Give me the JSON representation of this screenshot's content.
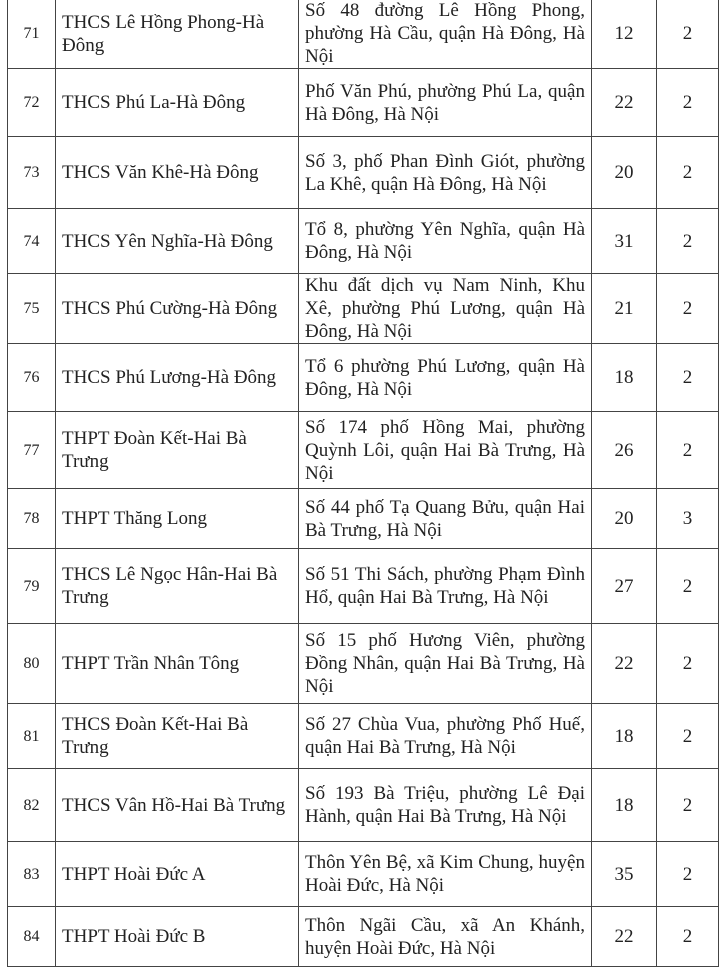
{
  "rows": [
    {
      "no": "71",
      "name": "THCS Lê Hồng Phong-Hà Đông",
      "address": "Số 48 đường Lê Hồng Phong, phường Hà Cầu, quận Hà Đông, Hà Nội",
      "a": "12",
      "b": "2"
    },
    {
      "no": "72",
      "name": "THCS Phú La-Hà Đông",
      "address": "Phố Văn Phú, phường Phú La, quận Hà Đông, Hà Nội",
      "a": "22",
      "b": "2"
    },
    {
      "no": "73",
      "name": "THCS Văn Khê-Hà Đông",
      "address": "Số 3, phố Phan Đình Giót, phường La Khê, quận Hà Đông, Hà Nội",
      "a": "20",
      "b": "2"
    },
    {
      "no": "74",
      "name": "THCS Yên Nghĩa-Hà Đông",
      "address": "Tổ 8, phường Yên Nghĩa, quận Hà Đông, Hà Nội",
      "a": "31",
      "b": "2"
    },
    {
      "no": "75",
      "name": "THCS Phú Cường-Hà Đông",
      "address": "Khu đất dịch vụ Nam Ninh, Khu Xê, phường Phú Lương, quận Hà Đông, Hà Nội",
      "a": "21",
      "b": "2"
    },
    {
      "no": "76",
      "name": "THCS Phú Lương-Hà Đông",
      "address": "Tổ 6 phường Phú Lương, quận Hà Đông, Hà Nội",
      "a": "18",
      "b": "2"
    },
    {
      "no": "77",
      "name": "THPT Đoàn Kết-Hai Bà Trưng",
      "address": "Số 174 phố Hồng Mai, phường Quỳnh Lôi, quận Hai Bà Trưng, Hà Nội",
      "a": "26",
      "b": "2"
    },
    {
      "no": "78",
      "name": "THPT Thăng Long",
      "address": "Số 44 phố Tạ Quang Bửu, quận Hai Bà Trưng, Hà Nội",
      "a": "20",
      "b": "3"
    },
    {
      "no": "79",
      "name": "THCS Lê Ngọc Hân-Hai Bà Trưng",
      "address": "Số 51 Thi Sách, phường Phạm Đình Hổ, quận Hai Bà Trưng, Hà Nội",
      "a": "27",
      "b": "2"
    },
    {
      "no": "80",
      "name": "THPT Trần Nhân Tông",
      "address": "Số 15 phố Hương Viên, phường Đồng Nhân, quận Hai Bà Trưng, Hà Nội",
      "a": "22",
      "b": "2"
    },
    {
      "no": "81",
      "name": "THCS Đoàn Kết-Hai Bà Trưng",
      "address": "Số 27 Chùa Vua, phường Phố Huế, quận Hai Bà Trưng, Hà Nội",
      "a": "18",
      "b": "2"
    },
    {
      "no": "82",
      "name": "THCS Vân Hồ-Hai Bà Trưng",
      "address": "Số 193 Bà Triệu, phường Lê Đại Hành, quận Hai Bà Trưng, Hà Nội",
      "a": "18",
      "b": "2"
    },
    {
      "no": "83",
      "name": "THPT Hoài Đức A",
      "address": "Thôn Yên Bệ, xã Kim Chung, huyện Hoài Đức, Hà Nội",
      "a": "35",
      "b": "2"
    },
    {
      "no": "84",
      "name": "THPT Hoài Đức B",
      "address": "Thôn Ngãi Cầu, xã An Khánh, huyện Hoài Đức, Hà Nội",
      "a": "22",
      "b": "2"
    }
  ]
}
